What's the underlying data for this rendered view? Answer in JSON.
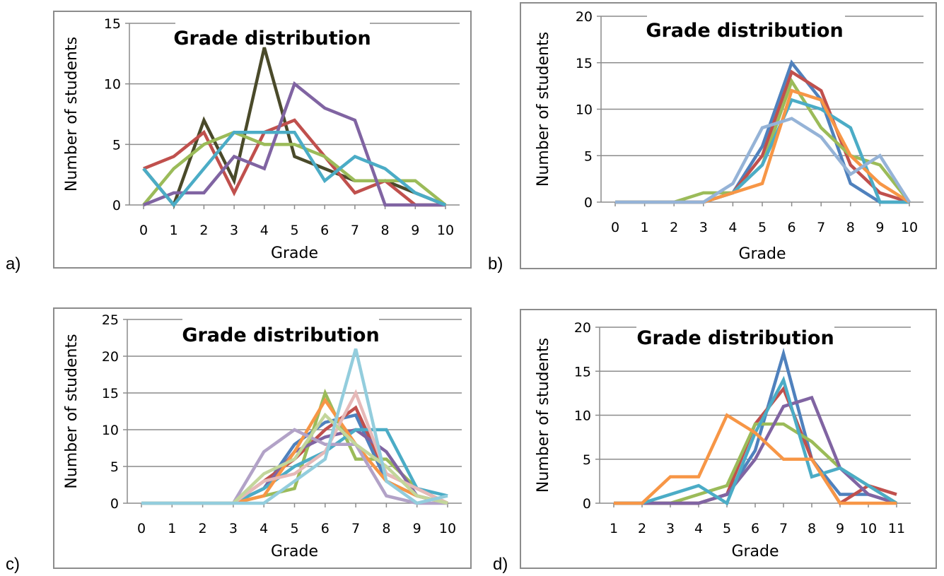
{
  "figure": {
    "panels": [
      {
        "letter": "a)"
      },
      {
        "letter": "b)"
      },
      {
        "letter": "c)"
      },
      {
        "letter": "d)"
      }
    ]
  },
  "chart_data": [
    {
      "type": "line",
      "title": "Grade distribution",
      "xlabel": "Grade",
      "ylabel": "Number of students",
      "x": [
        0,
        1,
        2,
        3,
        4,
        5,
        6,
        7,
        8,
        9,
        10
      ],
      "ylim": [
        0,
        15
      ],
      "yticks": [
        0,
        5,
        10,
        15
      ],
      "grid": true,
      "series": [
        {
          "color": "#4a4a2a",
          "values": [
            3,
            0,
            7,
            2,
            13,
            4,
            3,
            2,
            2,
            1,
            0
          ]
        },
        {
          "color": "#c0504d",
          "values": [
            3,
            4,
            6,
            1,
            6,
            7,
            4,
            1,
            2,
            0,
            0
          ]
        },
        {
          "color": "#9bbb59",
          "values": [
            0,
            3,
            5,
            6,
            5,
            5,
            4,
            2,
            2,
            2,
            0
          ]
        },
        {
          "color": "#8064a2",
          "values": [
            0,
            1,
            1,
            4,
            3,
            10,
            8,
            7,
            0,
            0,
            0
          ]
        },
        {
          "color": "#4bacc6",
          "values": [
            3,
            0,
            3,
            6,
            6,
            6,
            2,
            4,
            3,
            1,
            0
          ]
        }
      ]
    },
    {
      "type": "line",
      "title": "Grade distribution",
      "xlabel": "Grade",
      "ylabel": "Number of students",
      "x": [
        0,
        1,
        2,
        3,
        4,
        5,
        6,
        7,
        8,
        9,
        10
      ],
      "ylim": [
        0,
        20
      ],
      "yticks": [
        0,
        5,
        10,
        15,
        20
      ],
      "grid": true,
      "series": [
        {
          "color": "#4f81bd",
          "values": [
            0,
            0,
            0,
            0,
            1,
            6,
            15,
            11,
            2,
            0,
            0
          ]
        },
        {
          "color": "#c0504d",
          "values": [
            0,
            0,
            0,
            0,
            1,
            5,
            14,
            12,
            4,
            1,
            0
          ]
        },
        {
          "color": "#9bbb59",
          "values": [
            0,
            0,
            0,
            1,
            1,
            4,
            13,
            8,
            5,
            4,
            0
          ]
        },
        {
          "color": "#4bacc6",
          "values": [
            0,
            0,
            0,
            0,
            1,
            4,
            11,
            10,
            8,
            0,
            0
          ]
        },
        {
          "color": "#f79646",
          "values": [
            0,
            0,
            0,
            0,
            1,
            2,
            12,
            11,
            5,
            2,
            0
          ]
        },
        {
          "color": "#95b3d7",
          "values": [
            0,
            0,
            0,
            0,
            2,
            8,
            9,
            7,
            3,
            5,
            0
          ]
        }
      ]
    },
    {
      "type": "line",
      "title": "Grade distribution",
      "xlabel": "Grade",
      "ylabel": "Number of students",
      "x": [
        0,
        1,
        2,
        3,
        4,
        5,
        6,
        7,
        8,
        9,
        10
      ],
      "ylim": [
        0,
        25
      ],
      "yticks": [
        0,
        5,
        10,
        15,
        20,
        25
      ],
      "grid": true,
      "series": [
        {
          "color": "#4f81bd",
          "values": [
            0,
            0,
            0,
            0,
            2,
            8,
            11,
            12,
            3,
            1,
            0
          ]
        },
        {
          "color": "#c0504d",
          "values": [
            0,
            0,
            0,
            0,
            3,
            6,
            10,
            13,
            4,
            2,
            0
          ]
        },
        {
          "color": "#9bbb59",
          "values": [
            0,
            0,
            0,
            0,
            1,
            2,
            15,
            6,
            6,
            2,
            0
          ]
        },
        {
          "color": "#8064a2",
          "values": [
            0,
            0,
            0,
            0,
            2,
            7,
            9,
            10,
            7,
            1,
            0
          ]
        },
        {
          "color": "#4bacc6",
          "values": [
            0,
            0,
            0,
            0,
            2,
            5,
            7,
            10,
            10,
            2,
            1
          ]
        },
        {
          "color": "#f79646",
          "values": [
            0,
            0,
            0,
            0,
            1,
            7,
            14,
            8,
            3,
            1,
            0
          ]
        },
        {
          "color": "#b2a2c7",
          "values": [
            0,
            0,
            0,
            0,
            7,
            10,
            8,
            8,
            1,
            0,
            0
          ]
        },
        {
          "color": "#e6b9b8",
          "values": [
            0,
            0,
            0,
            0,
            3,
            4,
            7,
            15,
            4,
            2,
            0
          ]
        },
        {
          "color": "#c3d69b",
          "values": [
            0,
            0,
            0,
            0,
            4,
            6,
            12,
            8,
            5,
            1,
            0
          ]
        },
        {
          "color": "#93cddd",
          "values": [
            0,
            0,
            0,
            0,
            0,
            3,
            6,
            21,
            3,
            0,
            1
          ]
        }
      ]
    },
    {
      "type": "line",
      "title": "Grade distribution",
      "xlabel": "Grade",
      "ylabel": "Number of students",
      "x": [
        1,
        2,
        3,
        4,
        5,
        6,
        7,
        8,
        9,
        10,
        11
      ],
      "ylim": [
        0,
        20
      ],
      "yticks": [
        0,
        5,
        10,
        15,
        20
      ],
      "grid": true,
      "series": [
        {
          "color": "#4f81bd",
          "values": [
            0,
            0,
            0,
            0,
            1,
            6,
            17,
            5,
            1,
            1,
            0
          ]
        },
        {
          "color": "#c0504d",
          "values": [
            0,
            0,
            0,
            0,
            1,
            9,
            13,
            5,
            0,
            2,
            1
          ]
        },
        {
          "color": "#9bbb59",
          "values": [
            0,
            0,
            0,
            1,
            2,
            9,
            9,
            7,
            4,
            2,
            0
          ]
        },
        {
          "color": "#8064a2",
          "values": [
            0,
            0,
            0,
            0,
            1,
            5,
            11,
            12,
            4,
            1,
            0
          ]
        },
        {
          "color": "#4bacc6",
          "values": [
            0,
            0,
            1,
            2,
            0,
            8,
            14,
            3,
            4,
            2,
            0
          ]
        },
        {
          "color": "#f79646",
          "values": [
            0,
            0,
            3,
            3,
            10,
            8,
            5,
            5,
            0,
            0,
            0
          ]
        }
      ]
    }
  ]
}
